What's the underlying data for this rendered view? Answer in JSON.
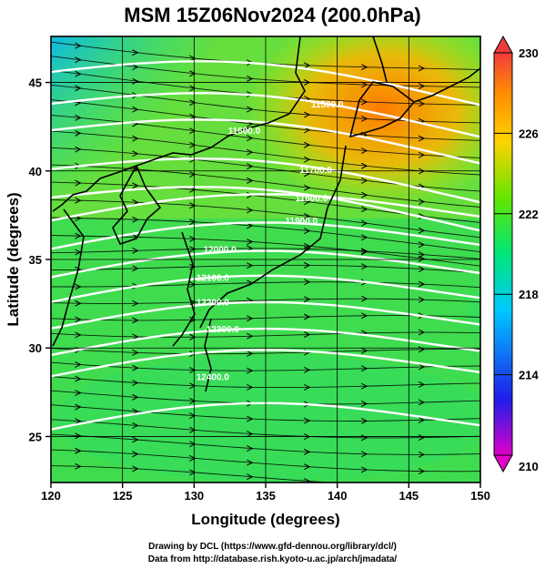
{
  "title": "MSM 15Z06Nov2024 (200.0hPa)",
  "axes": {
    "xlabel": "Longitude (degrees)",
    "ylabel": "Latitude  (degrees)",
    "x_ticks": [
      "120",
      "125",
      "130",
      "135",
      "140",
      "145",
      "150"
    ],
    "y_ticks": [
      "25",
      "30",
      "35",
      "40",
      "45"
    ],
    "x_range": [
      120,
      150
    ],
    "y_range": [
      22.4,
      47.6
    ]
  },
  "colorbar": {
    "min": 210,
    "max": 230,
    "tick_labels": [
      "230",
      "226",
      "222",
      "218",
      "214",
      "210"
    ],
    "colors": [
      "#e000c8",
      "#1e1ee8",
      "#00c8ff",
      "#00e678",
      "#64e600",
      "#ffd200",
      "#ff8c00",
      "#f03c3c"
    ]
  },
  "contour_labels": [
    {
      "text": "11500.0",
      "lon": 139.3,
      "lat": 43.8
    },
    {
      "text": "11600.0",
      "lon": 133.5,
      "lat": 42.3
    },
    {
      "text": "11700.0",
      "lon": 138.5,
      "lat": 40.1
    },
    {
      "text": "11800.0",
      "lon": 138.2,
      "lat": 38.5
    },
    {
      "text": "11900.0",
      "lon": 137.5,
      "lat": 37.2
    },
    {
      "text": "12000.0",
      "lon": 131.8,
      "lat": 35.6
    },
    {
      "text": "12100.0",
      "lon": 131.3,
      "lat": 34.0
    },
    {
      "text": "12200.0",
      "lon": 131.3,
      "lat": 32.6
    },
    {
      "text": "12300.0",
      "lon": 132.0,
      "lat": 31.1
    },
    {
      "text": "12400.0",
      "lon": 131.3,
      "lat": 28.4
    }
  ],
  "credits": {
    "line1": "Drawing by DCL (https://www.gfd-dennou.org/library/dcl/)",
    "line2": "Data from http://database.rish.kyoto-u.ac.jp/arch/jmadata/"
  }
}
